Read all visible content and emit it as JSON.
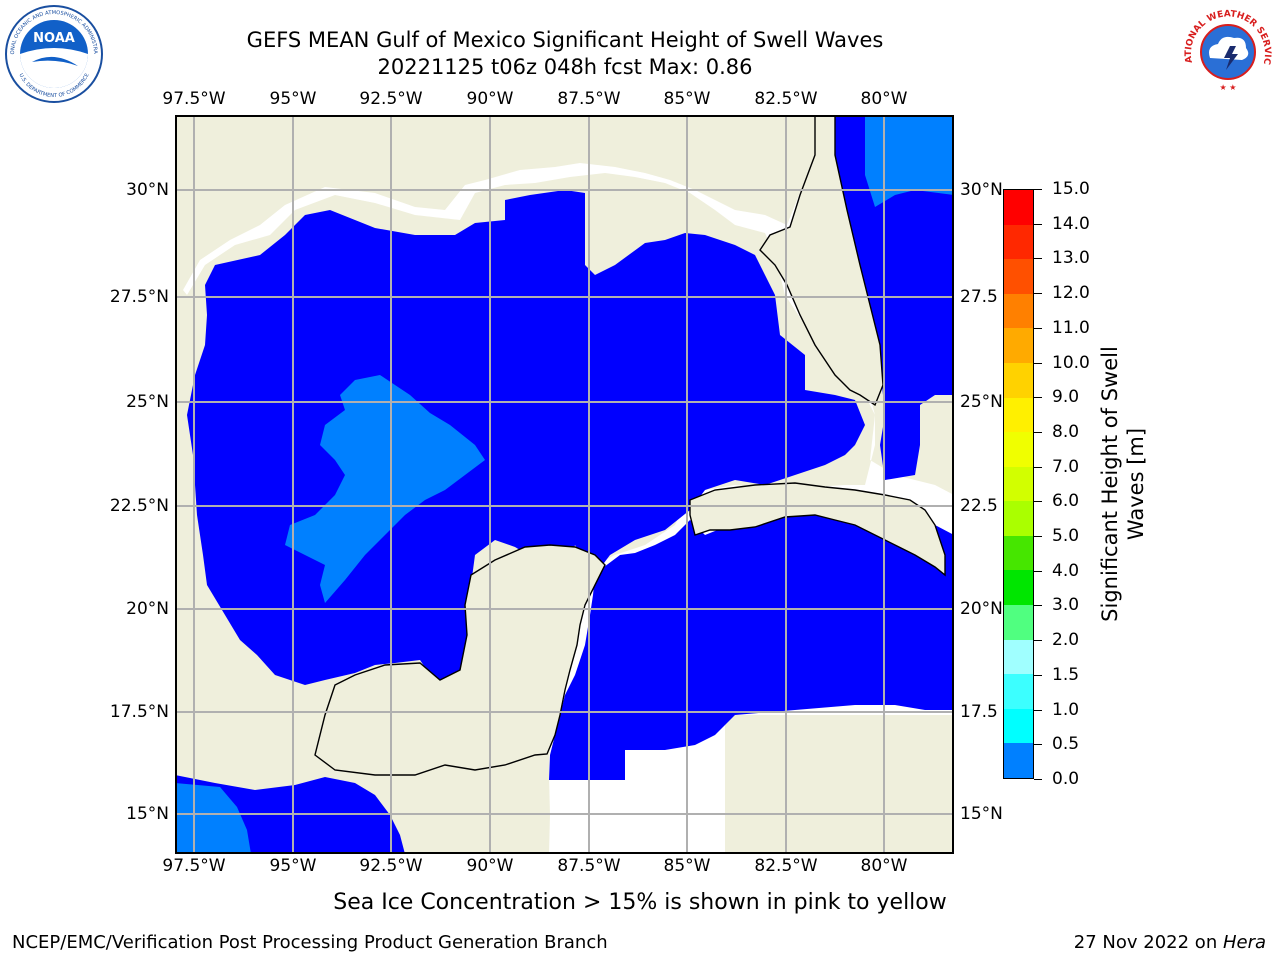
{
  "header": {
    "title_line1": "GEFS MEAN Gulf of Mexico Significant Height of Swell Waves",
    "title_line2": "20221125 t06z 048h fcst   Max: 0.86"
  },
  "logos": {
    "left_text": "NOAA",
    "left_ring_top": "NATIONAL OCEANIC AND ATMOSPHERIC ADMINISTRATION",
    "left_ring_bottom": "U.S. DEPARTMENT OF COMMERCE",
    "right_ring": "NATIONAL WEATHER SERVICE"
  },
  "map": {
    "lon_labels": [
      "97.5°W",
      "95°W",
      "92.5°W",
      "90°W",
      "87.5°W",
      "85°W",
      "82.5°W",
      "80°W"
    ],
    "lat_labels_left": [
      "30°N",
      "27.5°N",
      "25°N",
      "22.5°N",
      "20°N",
      "17.5°N",
      "15°N"
    ],
    "lat_labels_right": [
      "30°N",
      "27.5",
      "25°N",
      "22.5",
      "20°N",
      "17.5",
      "15°N"
    ],
    "colors": {
      "land": "#efefdc",
      "sea_low": "#0000ff",
      "sea_mid": "#0080ff",
      "grid": "#b0b0b0"
    }
  },
  "colorbar": {
    "label": "Significant Height of Swell Waves [m]",
    "label_line1": "Significant Height of Swell",
    "label_line2": "Waves [m]",
    "ticks": [
      "15.0",
      "14.0",
      "13.0",
      "12.0",
      "11.0",
      "10.0",
      "9.0",
      "8.0",
      "7.0",
      "6.0",
      "5.0",
      "4.0",
      "3.0",
      "2.0",
      "1.5",
      "1.0",
      "0.5",
      "0.0"
    ],
    "colors": [
      "#ff0000",
      "#ff2800",
      "#ff5000",
      "#ff8000",
      "#ffaa00",
      "#ffd200",
      "#fff000",
      "#f0ff00",
      "#d2ff00",
      "#aaff00",
      "#46e600",
      "#00e600",
      "#50ff80",
      "#a0ffff",
      "#3cffff",
      "#00ffff",
      "#0080ff",
      "#0000ff"
    ]
  },
  "note": "Sea Ice Concentration > 15% is shown in pink to yellow",
  "footer": {
    "left": "NCEP/EMC/Verification Post Processing Product Generation Branch",
    "right_date": "27 Nov 2022 on ",
    "right_host": "Hera"
  }
}
